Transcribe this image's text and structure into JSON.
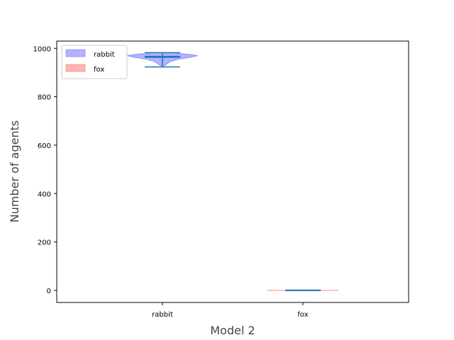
{
  "chart_data": {
    "type": "violin",
    "title": "",
    "xlabel": "Model 2",
    "ylabel": "Number of agents",
    "ylim": [
      -50,
      1030
    ],
    "yticks": [
      0,
      200,
      400,
      600,
      800,
      1000
    ],
    "grid": false,
    "legend_position": "top-left",
    "categories": [
      "rabbit",
      "fox"
    ],
    "series": [
      {
        "name": "rabbit",
        "fill": "#6666ff",
        "min": 923,
        "median": 966,
        "mean": 963,
        "max": 982,
        "density": [
          {
            "y": 923,
            "w": 0.0
          },
          {
            "y": 935,
            "w": 0.12
          },
          {
            "y": 945,
            "w": 0.22
          },
          {
            "y": 955,
            "w": 0.45
          },
          {
            "y": 963,
            "w": 0.8
          },
          {
            "y": 970,
            "w": 1.0
          },
          {
            "y": 976,
            "w": 0.72
          },
          {
            "y": 982,
            "w": 0.2
          }
        ]
      },
      {
        "name": "fox",
        "fill": "#ff6666",
        "min": 0,
        "median": 0,
        "mean": 0,
        "max": 0,
        "density": []
      }
    ],
    "line_color": "#1f77b4"
  }
}
